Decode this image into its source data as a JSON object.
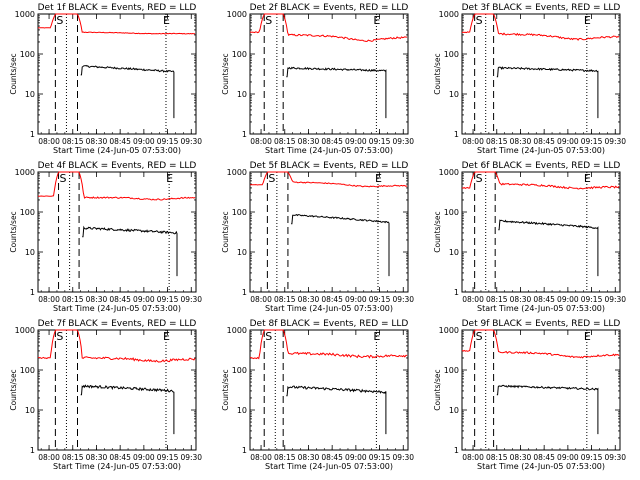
{
  "chart_data": {
    "type": "line",
    "y_scale": "log",
    "ylim": [
      1,
      1000
    ],
    "y_tick_labels": [
      "1",
      "10",
      "100",
      "1000"
    ],
    "ylabel": "Counts/sec",
    "xlabel": "Start Time (24-Jun-05 07:53:00)",
    "x_tick_labels": [
      "08:00",
      "08:15",
      "08:30",
      "08:45",
      "09:00",
      "09:15",
      "09:30"
    ],
    "x_tick_minutes": [
      7,
      22,
      37,
      52,
      67,
      82,
      97
    ],
    "x_range_minutes": [
      0,
      100
    ],
    "colors": {
      "events": "#000000",
      "lld": "#ff0000"
    },
    "panels": [
      {
        "title": "Det 1f BLACK = Events, RED = LLD",
        "markers": {
          "S_label": "S",
          "E_label": "E",
          "dashed": [
            11,
            25
          ],
          "dotted": [
            18,
            81
          ],
          "S_at": 11,
          "E_at": 81
        },
        "lld": {
          "pre": 450,
          "peak": 1000,
          "start": 350,
          "end": 320,
          "dip": 320,
          "noise": 0.02
        },
        "events": {
          "start": 50,
          "end": 36,
          "end_at": 86,
          "noise": 0.05
        }
      },
      {
        "title": "Det 2f BLACK = Events, RED = LLD",
        "markers": {
          "S_label": "S",
          "E_label": "E",
          "dashed": [
            9,
            21
          ],
          "dotted": [
            17,
            80
          ],
          "S_at": 9,
          "E_at": 80
        },
        "lld": {
          "pre": 350,
          "peak": 1000,
          "start": 300,
          "end": 260,
          "dip": 200,
          "noise": 0.05
        },
        "events": {
          "start": 45,
          "end": 38,
          "end_at": 86,
          "noise": 0.05
        }
      },
      {
        "title": "Det 3f BLACK = Events, RED = LLD",
        "markers": {
          "S_label": "S",
          "E_label": "E",
          "dashed": [
            8,
            20
          ],
          "dotted": [
            15,
            79
          ],
          "S_at": 8,
          "E_at": 79
        },
        "lld": {
          "pre": 350,
          "peak": 1000,
          "start": 320,
          "end": 270,
          "dip": 220,
          "noise": 0.05
        },
        "events": {
          "start": 45,
          "end": 38,
          "end_at": 86,
          "noise": 0.05
        }
      },
      {
        "title": "Det 4f BLACK = Events, RED = LLD",
        "markers": {
          "S_label": "S",
          "E_label": "E",
          "dashed": [
            13,
            26
          ],
          "dotted": [
            20,
            83
          ],
          "S_at": 13,
          "E_at": 83
        },
        "lld": {
          "pre": 250,
          "peak": 1000,
          "start": 230,
          "end": 230,
          "dip": 200,
          "noise": 0.04
        },
        "events": {
          "start": 40,
          "end": 30,
          "end_at": 88,
          "noise": 0.06
        }
      },
      {
        "title": "Det 5f BLACK = Events, RED = LLD",
        "markers": {
          "S_label": "S",
          "E_label": "E",
          "dashed": [
            11,
            24
          ],
          "dotted": [
            17,
            81
          ],
          "S_at": 11,
          "E_at": 81
        },
        "lld": {
          "pre": 480,
          "peak": 1000,
          "start": 560,
          "end": 450,
          "dip": 420,
          "noise": 0.03
        },
        "events": {
          "start": 85,
          "end": 55,
          "end_at": 88,
          "noise": 0.04
        }
      },
      {
        "title": "Det 6f BLACK = Events, RED = LLD",
        "markers": {
          "S_label": "S",
          "E_label": "E",
          "dashed": [
            8,
            21
          ],
          "dotted": [
            15,
            79
          ],
          "S_at": 8,
          "E_at": 79
        },
        "lld": {
          "pre": 400,
          "peak": 1000,
          "start": 500,
          "end": 420,
          "dip": 380,
          "noise": 0.05
        },
        "events": {
          "start": 60,
          "end": 40,
          "end_at": 86,
          "noise": 0.05
        }
      },
      {
        "title": "Det 7f BLACK = Events, RED = LLD",
        "markers": {
          "S_label": "S",
          "E_label": "E",
          "dashed": [
            11,
            25
          ],
          "dotted": [
            18,
            81
          ],
          "S_at": 11,
          "E_at": 81
        },
        "lld": {
          "pre": 200,
          "peak": 1000,
          "start": 200,
          "end": 190,
          "dip": 160,
          "noise": 0.07
        },
        "events": {
          "start": 40,
          "end": 30,
          "end_at": 86,
          "noise": 0.07
        }
      },
      {
        "title": "Det 8f BLACK = Events, RED = LLD",
        "markers": {
          "S_label": "S",
          "E_label": "E",
          "dashed": [
            9,
            21
          ],
          "dotted": [
            16,
            80
          ],
          "S_at": 9,
          "E_at": 80
        },
        "lld": {
          "pre": 200,
          "peak": 1000,
          "start": 260,
          "end": 230,
          "dip": 210,
          "noise": 0.07
        },
        "events": {
          "start": 38,
          "end": 28,
          "end_at": 86,
          "noise": 0.07
        }
      },
      {
        "title": "Det 9f BLACK = Events, RED = LLD",
        "markers": {
          "S_label": "S",
          "E_label": "E",
          "dashed": [
            8,
            20
          ],
          "dotted": [
            15,
            79
          ],
          "S_at": 8,
          "E_at": 79
        },
        "lld": {
          "pre": 300,
          "peak": 1000,
          "start": 280,
          "end": 240,
          "dip": 200,
          "noise": 0.05
        },
        "events": {
          "start": 40,
          "end": 33,
          "end_at": 86,
          "noise": 0.05
        }
      }
    ]
  }
}
